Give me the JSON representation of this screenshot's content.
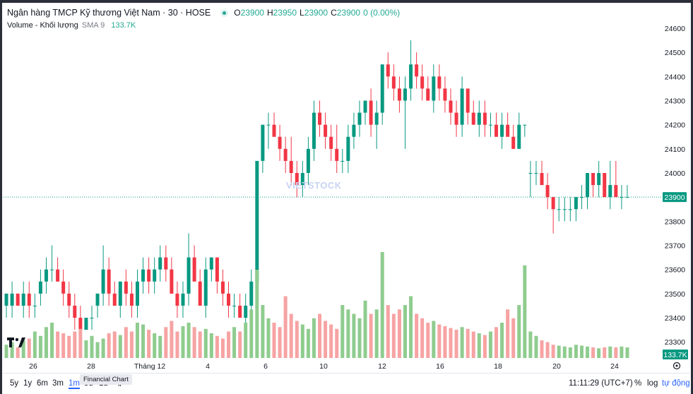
{
  "legend": {
    "title": "Ngân hàng TMCP Kỹ thương Việt Nam · 30 · HOSE",
    "o_label": "O",
    "o": "23900",
    "h_label": "H",
    "h": "23950",
    "l_label": "L",
    "l": "23900",
    "c_label": "C",
    "c": "23900",
    "change": "0 (0.00%)"
  },
  "volume_legend": {
    "label": "Volume - Khối lượng",
    "sma": "SMA 9",
    "value": "133.7K"
  },
  "price_badge": "23900",
  "volume_badge": "133.7K",
  "watermark": "VIETSTOCK",
  "bottom_bar": {
    "ranges": [
      "5y",
      "1y",
      "6m",
      "3m",
      "1m",
      "5d",
      "1d"
    ],
    "active_range": "1m",
    "tooltip": "Financial Chart",
    "time": "11:11:29 (UTC+7)",
    "percent": "%",
    "log": "log",
    "auto": "tự động"
  },
  "colors": {
    "up": "#089981",
    "down": "#f23645",
    "vol_up": "#8fcc8f",
    "vol_down": "#f7a3a3",
    "price_line": "#089981",
    "accent": "#2962ff"
  },
  "chart_data": {
    "type": "candlestick",
    "y_ticks": [
      24600,
      24500,
      24400,
      24300,
      24200,
      24100,
      24000,
      23900,
      23800,
      23700,
      23600,
      23500,
      23400,
      23300
    ],
    "y_range": [
      23260,
      24640
    ],
    "x_ticks": [
      "26",
      "28",
      "Tháng 12",
      "4",
      "6",
      "10",
      "12",
      "16",
      "18",
      "20",
      "24"
    ],
    "last_price": 23900,
    "volume_last": "133.7K",
    "candles": [
      [
        23450,
        23500,
        23400,
        23500
      ],
      [
        23450,
        23550,
        23400,
        23500
      ],
      [
        23500,
        23500,
        23450,
        23450
      ],
      [
        23450,
        23550,
        23400,
        23500
      ],
      [
        23500,
        23550,
        23400,
        23450
      ],
      [
        23450,
        23500,
        23400,
        23450
      ],
      [
        23500,
        23600,
        23450,
        23550
      ],
      [
        23550,
        23650,
        23500,
        23600
      ],
      [
        23600,
        23700,
        23550,
        23600
      ],
      [
        23600,
        23650,
        23550,
        23550
      ],
      [
        23550,
        23600,
        23450,
        23500
      ],
      [
        23500,
        23550,
        23400,
        23450
      ],
      [
        23450,
        23500,
        23350,
        23400
      ],
      [
        23400,
        23450,
        23350,
        23350
      ],
      [
        23350,
        23400,
        23350,
        23400
      ],
      [
        23400,
        23450,
        23350,
        23400
      ],
      [
        23450,
        23500,
        23400,
        23500
      ],
      [
        23500,
        23700,
        23450,
        23600
      ],
      [
        23600,
        23650,
        23450,
        23500
      ],
      [
        23500,
        23550,
        23450,
        23450
      ],
      [
        23450,
        23550,
        23400,
        23550
      ],
      [
        23550,
        23600,
        23450,
        23500
      ],
      [
        23500,
        23550,
        23400,
        23450
      ],
      [
        23450,
        23600,
        23400,
        23550
      ],
      [
        23550,
        23650,
        23500,
        23600
      ],
      [
        23600,
        23650,
        23500,
        23550
      ],
      [
        23550,
        23650,
        23500,
        23600
      ],
      [
        23600,
        23700,
        23550,
        23650
      ],
      [
        23650,
        23700,
        23550,
        23600
      ],
      [
        23600,
        23650,
        23500,
        23500
      ],
      [
        23500,
        23550,
        23400,
        23450
      ],
      [
        23450,
        23550,
        23400,
        23500
      ],
      [
        23500,
        23750,
        23450,
        23650
      ],
      [
        23650,
        23700,
        23550,
        23550
      ],
      [
        23550,
        23600,
        23450,
        23450
      ],
      [
        23450,
        23650,
        23400,
        23600
      ],
      [
        23600,
        23650,
        23550,
        23650
      ],
      [
        23650,
        23650,
        23500,
        23550
      ],
      [
        23550,
        23600,
        23450,
        23500
      ],
      [
        23500,
        23550,
        23400,
        23450
      ],
      [
        23450,
        23500,
        23400,
        23450
      ],
      [
        23450,
        23500,
        23400,
        23400
      ],
      [
        23400,
        23500,
        23350,
        23450
      ],
      [
        23450,
        23600,
        23400,
        23550
      ],
      [
        23550,
        24050,
        23500,
        24050
      ],
      [
        24050,
        24200,
        24000,
        24200
      ],
      [
        24200,
        24250,
        24100,
        24200
      ],
      [
        24200,
        24250,
        24150,
        24150
      ],
      [
        24150,
        24200,
        24050,
        24100
      ],
      [
        24100,
        24150,
        24000,
        24050
      ],
      [
        24050,
        24150,
        23950,
        24000
      ],
      [
        24000,
        24050,
        23900,
        23950
      ],
      [
        23950,
        24050,
        23900,
        24000
      ],
      [
        24000,
        24150,
        23950,
        24100
      ],
      [
        24100,
        24300,
        24050,
        24250
      ],
      [
        24250,
        24300,
        24150,
        24200
      ],
      [
        24200,
        24250,
        24100,
        24150
      ],
      [
        24150,
        24200,
        24050,
        24100
      ],
      [
        24100,
        24200,
        24000,
        24050
      ],
      [
        24050,
        24100,
        24000,
        24050
      ],
      [
        24050,
        24200,
        24000,
        24150
      ],
      [
        24150,
        24250,
        24100,
        24200
      ],
      [
        24200,
        24300,
        24150,
        24250
      ],
      [
        24250,
        24300,
        24200,
        24300
      ],
      [
        24300,
        24350,
        24150,
        24200
      ],
      [
        24200,
        24300,
        24100,
        24250
      ],
      [
        24250,
        24450,
        24200,
        24450
      ],
      [
        24450,
        24500,
        24350,
        24400
      ],
      [
        24400,
        24450,
        24300,
        24350
      ],
      [
        24350,
        24400,
        24250,
        24300
      ],
      [
        24300,
        24400,
        24100,
        24350
      ],
      [
        24350,
        24550,
        24300,
        24450
      ],
      [
        24450,
        24500,
        24350,
        24400
      ],
      [
        24400,
        24450,
        24300,
        24350
      ],
      [
        24350,
        24400,
        24300,
        24300
      ],
      [
        24300,
        24450,
        24250,
        24400
      ],
      [
        24400,
        24450,
        24300,
        24350
      ],
      [
        24350,
        24400,
        24250,
        24300
      ],
      [
        24300,
        24350,
        24200,
        24250
      ],
      [
        24250,
        24300,
        24150,
        24200
      ],
      [
        24200,
        24400,
        24150,
        24350
      ],
      [
        24350,
        24350,
        24200,
        24250
      ],
      [
        24250,
        24300,
        24200,
        24200
      ],
      [
        24200,
        24300,
        24150,
        24250
      ],
      [
        24250,
        24300,
        24150,
        24200
      ],
      [
        24200,
        24250,
        24150,
        24200
      ],
      [
        24200,
        24250,
        24150,
        24150
      ],
      [
        24150,
        24250,
        24100,
        24200
      ],
      [
        24200,
        24250,
        24150,
        24150
      ],
      [
        24150,
        24200,
        24100,
        24100
      ],
      [
        24100,
        24250,
        24100,
        24200
      ],
      [
        24200,
        24200,
        24150,
        24200
      ],
      [
        24000,
        24050,
        23900,
        24000
      ],
      [
        24000,
        24050,
        23950,
        24000
      ],
      [
        24000,
        24050,
        23950,
        23950
      ],
      [
        23950,
        24000,
        23850,
        23900
      ],
      [
        23900,
        23900,
        23750,
        23850
      ],
      [
        23850,
        23900,
        23800,
        23850
      ],
      [
        23850,
        23900,
        23800,
        23850
      ],
      [
        23850,
        23900,
        23800,
        23850
      ],
      [
        23850,
        23900,
        23800,
        23900
      ],
      [
        23900,
        23950,
        23850,
        23900
      ],
      [
        23900,
        24000,
        23850,
        24000
      ],
      [
        24000,
        24000,
        23900,
        23950
      ],
      [
        23950,
        24050,
        23900,
        24000
      ],
      [
        24000,
        24000,
        23900,
        23900
      ],
      [
        23900,
        24050,
        23850,
        23950
      ],
      [
        23950,
        24050,
        23900,
        23900
      ],
      [
        23900,
        23950,
        23850,
        23900
      ],
      [
        23900,
        23950,
        23900,
        23900
      ]
    ],
    "volumes": [
      0.15,
      0.18,
      0.12,
      0.2,
      0.22,
      0.3,
      0.25,
      0.35,
      0.4,
      0.3,
      0.28,
      0.25,
      0.3,
      0.33,
      0.2,
      0.25,
      0.18,
      0.22,
      0.28,
      0.3,
      0.26,
      0.35,
      0.3,
      0.4,
      0.38,
      0.32,
      0.28,
      0.25,
      0.35,
      0.42,
      0.3,
      0.36,
      0.4,
      0.35,
      0.3,
      0.33,
      0.28,
      0.25,
      0.22,
      0.3,
      0.35,
      0.3,
      0.4,
      0.55,
      1.0,
      0.6,
      0.45,
      0.4,
      0.35,
      0.7,
      0.5,
      0.42,
      0.38,
      0.33,
      0.45,
      0.5,
      0.42,
      0.38,
      0.33,
      0.6,
      0.55,
      0.5,
      0.45,
      0.65,
      0.5,
      0.55,
      1.2,
      0.6,
      0.5,
      0.55,
      0.6,
      0.7,
      0.5,
      0.45,
      0.4,
      0.42,
      0.38,
      0.36,
      0.34,
      0.32,
      0.35,
      0.33,
      0.3,
      0.28,
      0.26,
      0.3,
      0.35,
      0.4,
      0.55,
      0.45,
      0.6,
      1.05,
      0.3,
      0.25,
      0.2,
      0.18,
      0.15,
      0.14,
      0.13,
      0.12,
      0.15,
      0.14,
      0.13,
      0.12,
      0.11,
      0.12,
      0.13,
      0.12,
      0.13,
      0.12
    ]
  }
}
